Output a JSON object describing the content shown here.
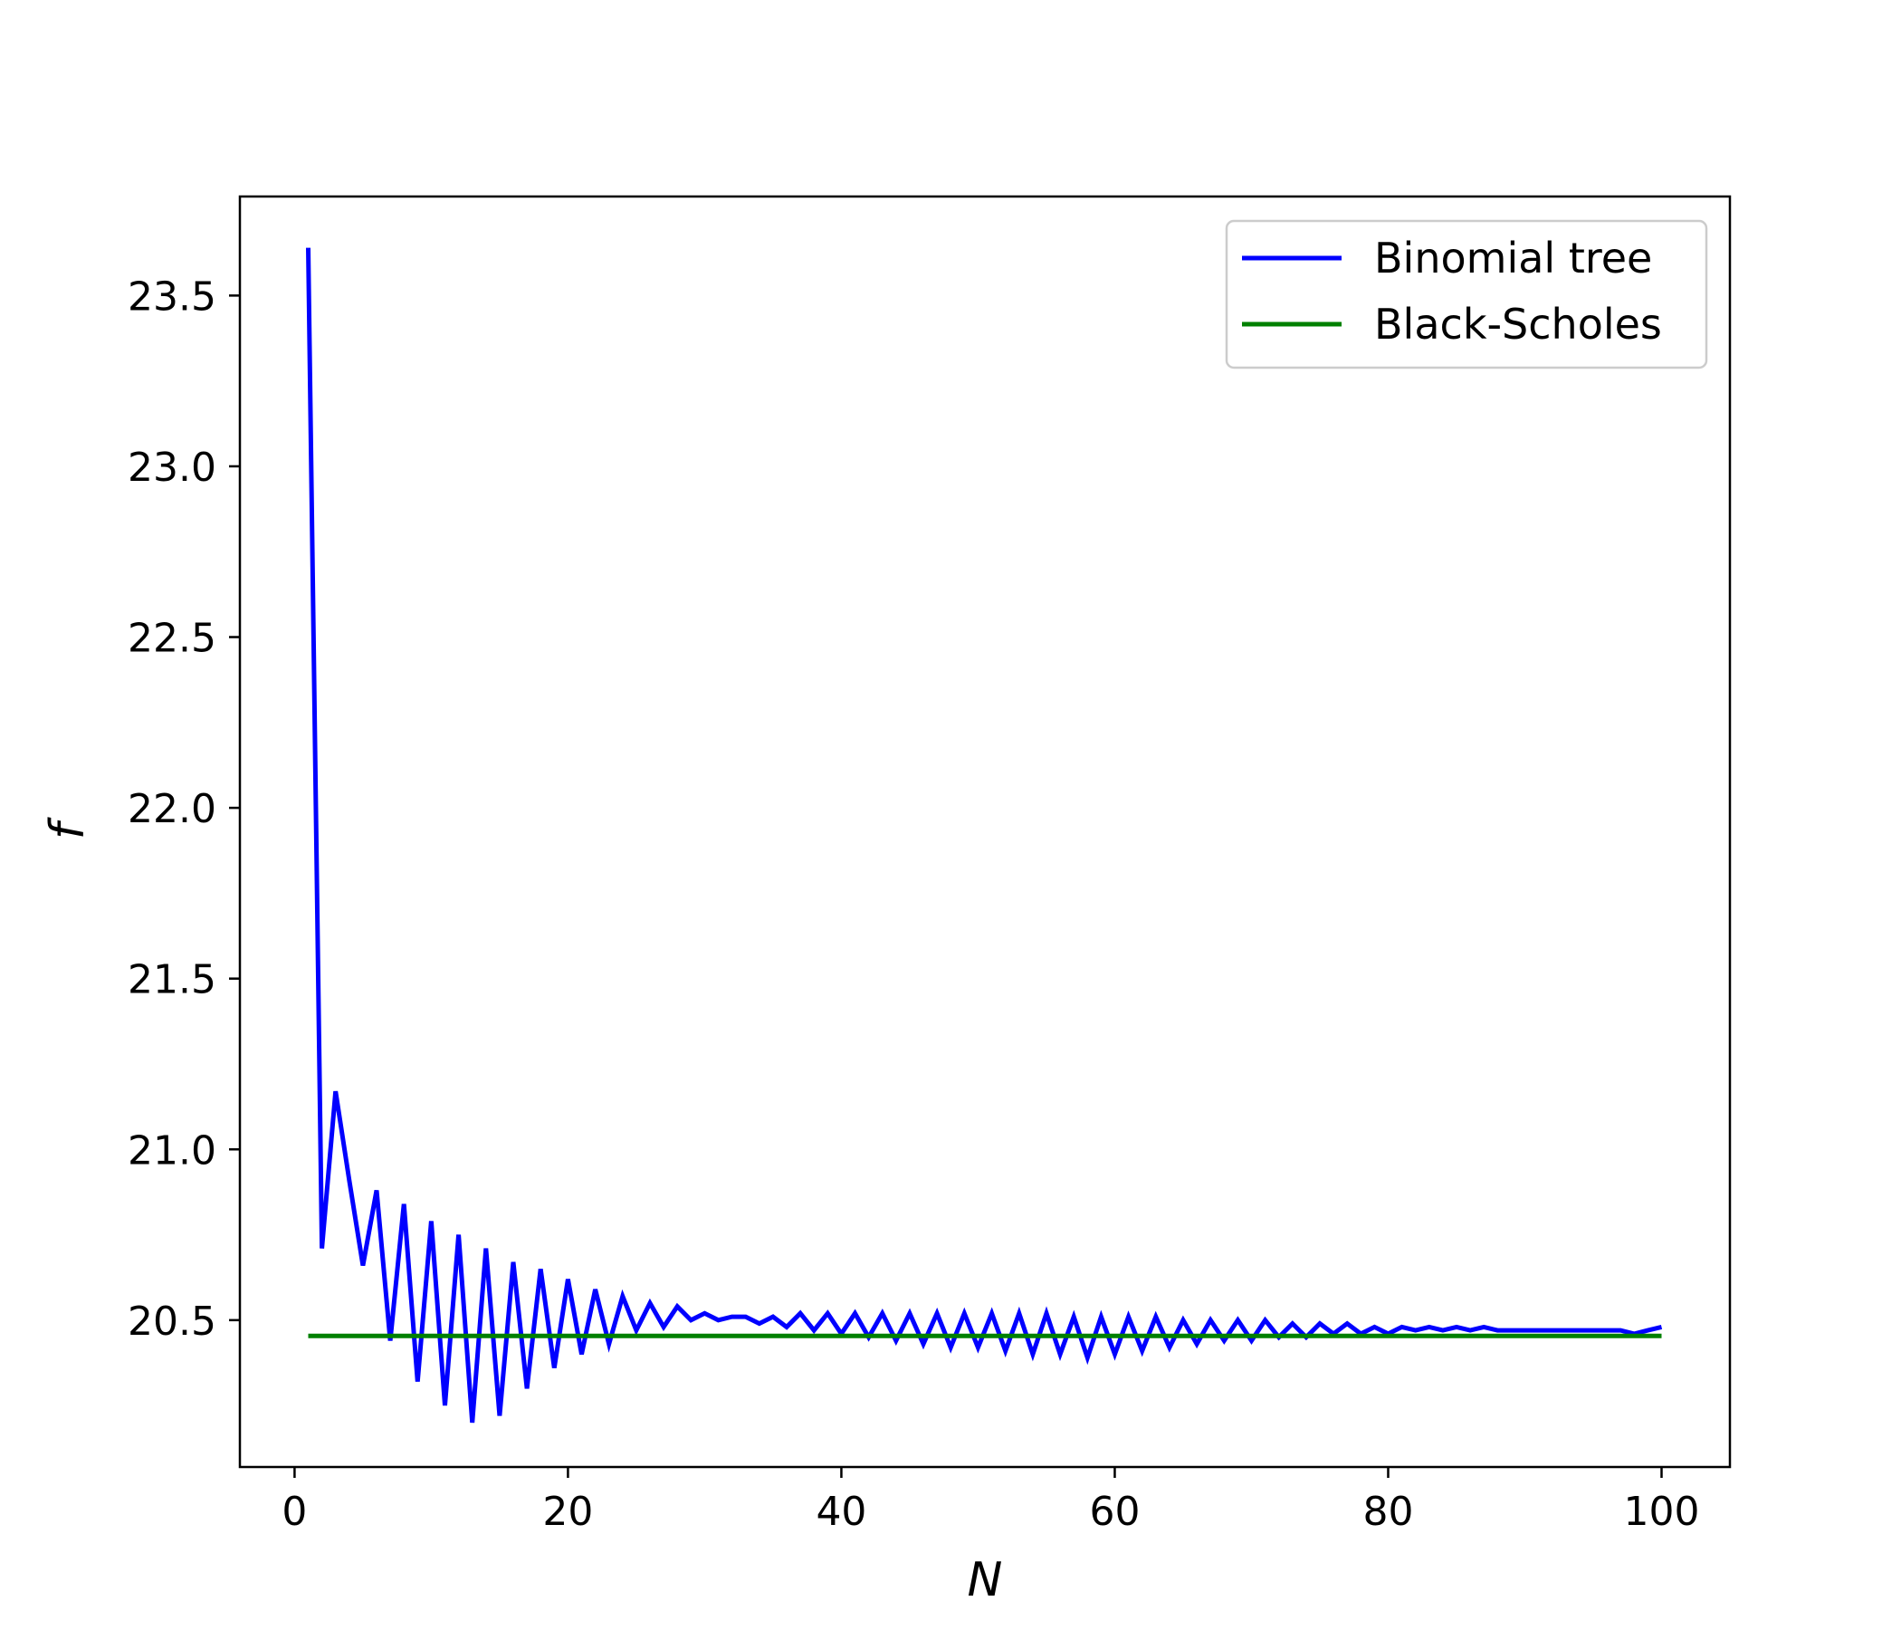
{
  "chart_data": {
    "type": "line",
    "title": "",
    "xlabel": "N",
    "ylabel": "f",
    "xlim": [
      -4.0,
      105.0
    ],
    "ylim": [
      20.07,
      23.79
    ],
    "xticks": [
      0,
      20,
      40,
      60,
      80,
      100
    ],
    "xtick_labels": [
      "0",
      "20",
      "40",
      "60",
      "80",
      "100"
    ],
    "yticks": [
      20.5,
      21.0,
      21.5,
      22.0,
      22.5,
      23.0,
      23.5
    ],
    "ytick_labels": [
      "20.5",
      "21.0",
      "21.5",
      "22.0",
      "22.5",
      "23.0",
      "23.5"
    ],
    "grid": false,
    "legend": "top-right",
    "series": [
      {
        "name": "Binomial tree",
        "color": "#0000ff",
        "x": [
          1,
          2,
          3,
          4,
          5,
          6,
          7,
          8,
          9,
          10,
          11,
          12,
          13,
          14,
          15,
          16,
          17,
          18,
          19,
          20,
          21,
          22,
          23,
          24,
          25,
          26,
          27,
          28,
          29,
          30,
          31,
          32,
          33,
          34,
          35,
          36,
          37,
          38,
          39,
          40,
          41,
          42,
          43,
          44,
          45,
          46,
          47,
          48,
          49,
          50,
          51,
          52,
          53,
          54,
          55,
          56,
          57,
          58,
          59,
          60,
          61,
          62,
          63,
          64,
          65,
          66,
          67,
          68,
          69,
          70,
          71,
          72,
          73,
          74,
          75,
          76,
          77,
          78,
          79,
          80,
          81,
          82,
          83,
          84,
          85,
          86,
          87,
          88,
          89,
          90,
          91,
          92,
          93,
          94,
          95,
          96,
          97,
          98,
          99,
          100
        ],
        "y": [
          23.64,
          20.71,
          21.17,
          20.91,
          20.66,
          20.88,
          20.44,
          20.84,
          20.32,
          20.79,
          20.25,
          20.75,
          20.2,
          20.71,
          20.22,
          20.67,
          20.3,
          20.65,
          20.36,
          20.62,
          20.4,
          20.59,
          20.43,
          20.57,
          20.47,
          20.55,
          20.48,
          20.54,
          20.5,
          20.52,
          20.5,
          20.51,
          20.51,
          20.49,
          20.51,
          20.48,
          20.52,
          20.47,
          20.52,
          20.46,
          20.52,
          20.45,
          20.52,
          20.44,
          20.52,
          20.43,
          20.52,
          20.42,
          20.52,
          20.42,
          20.52,
          20.41,
          20.52,
          20.4,
          20.52,
          20.4,
          20.51,
          20.39,
          20.51,
          20.4,
          20.51,
          20.41,
          20.51,
          20.42,
          20.5,
          20.43,
          20.5,
          20.44,
          20.5,
          20.44,
          20.5,
          20.45,
          20.49,
          20.45,
          20.49,
          20.46,
          20.49,
          20.46,
          20.48,
          20.46,
          20.48,
          20.47,
          20.48,
          20.47,
          20.48,
          20.47,
          20.48,
          20.47,
          20.47,
          20.47,
          20.47,
          20.47,
          20.47,
          20.47,
          20.47,
          20.47,
          20.47,
          20.46,
          20.47,
          20.48
        ]
      },
      {
        "name": "Black-Scholes",
        "color": "#008000",
        "x": [
          1,
          100
        ],
        "y": [
          20.454,
          20.454
        ]
      }
    ]
  }
}
